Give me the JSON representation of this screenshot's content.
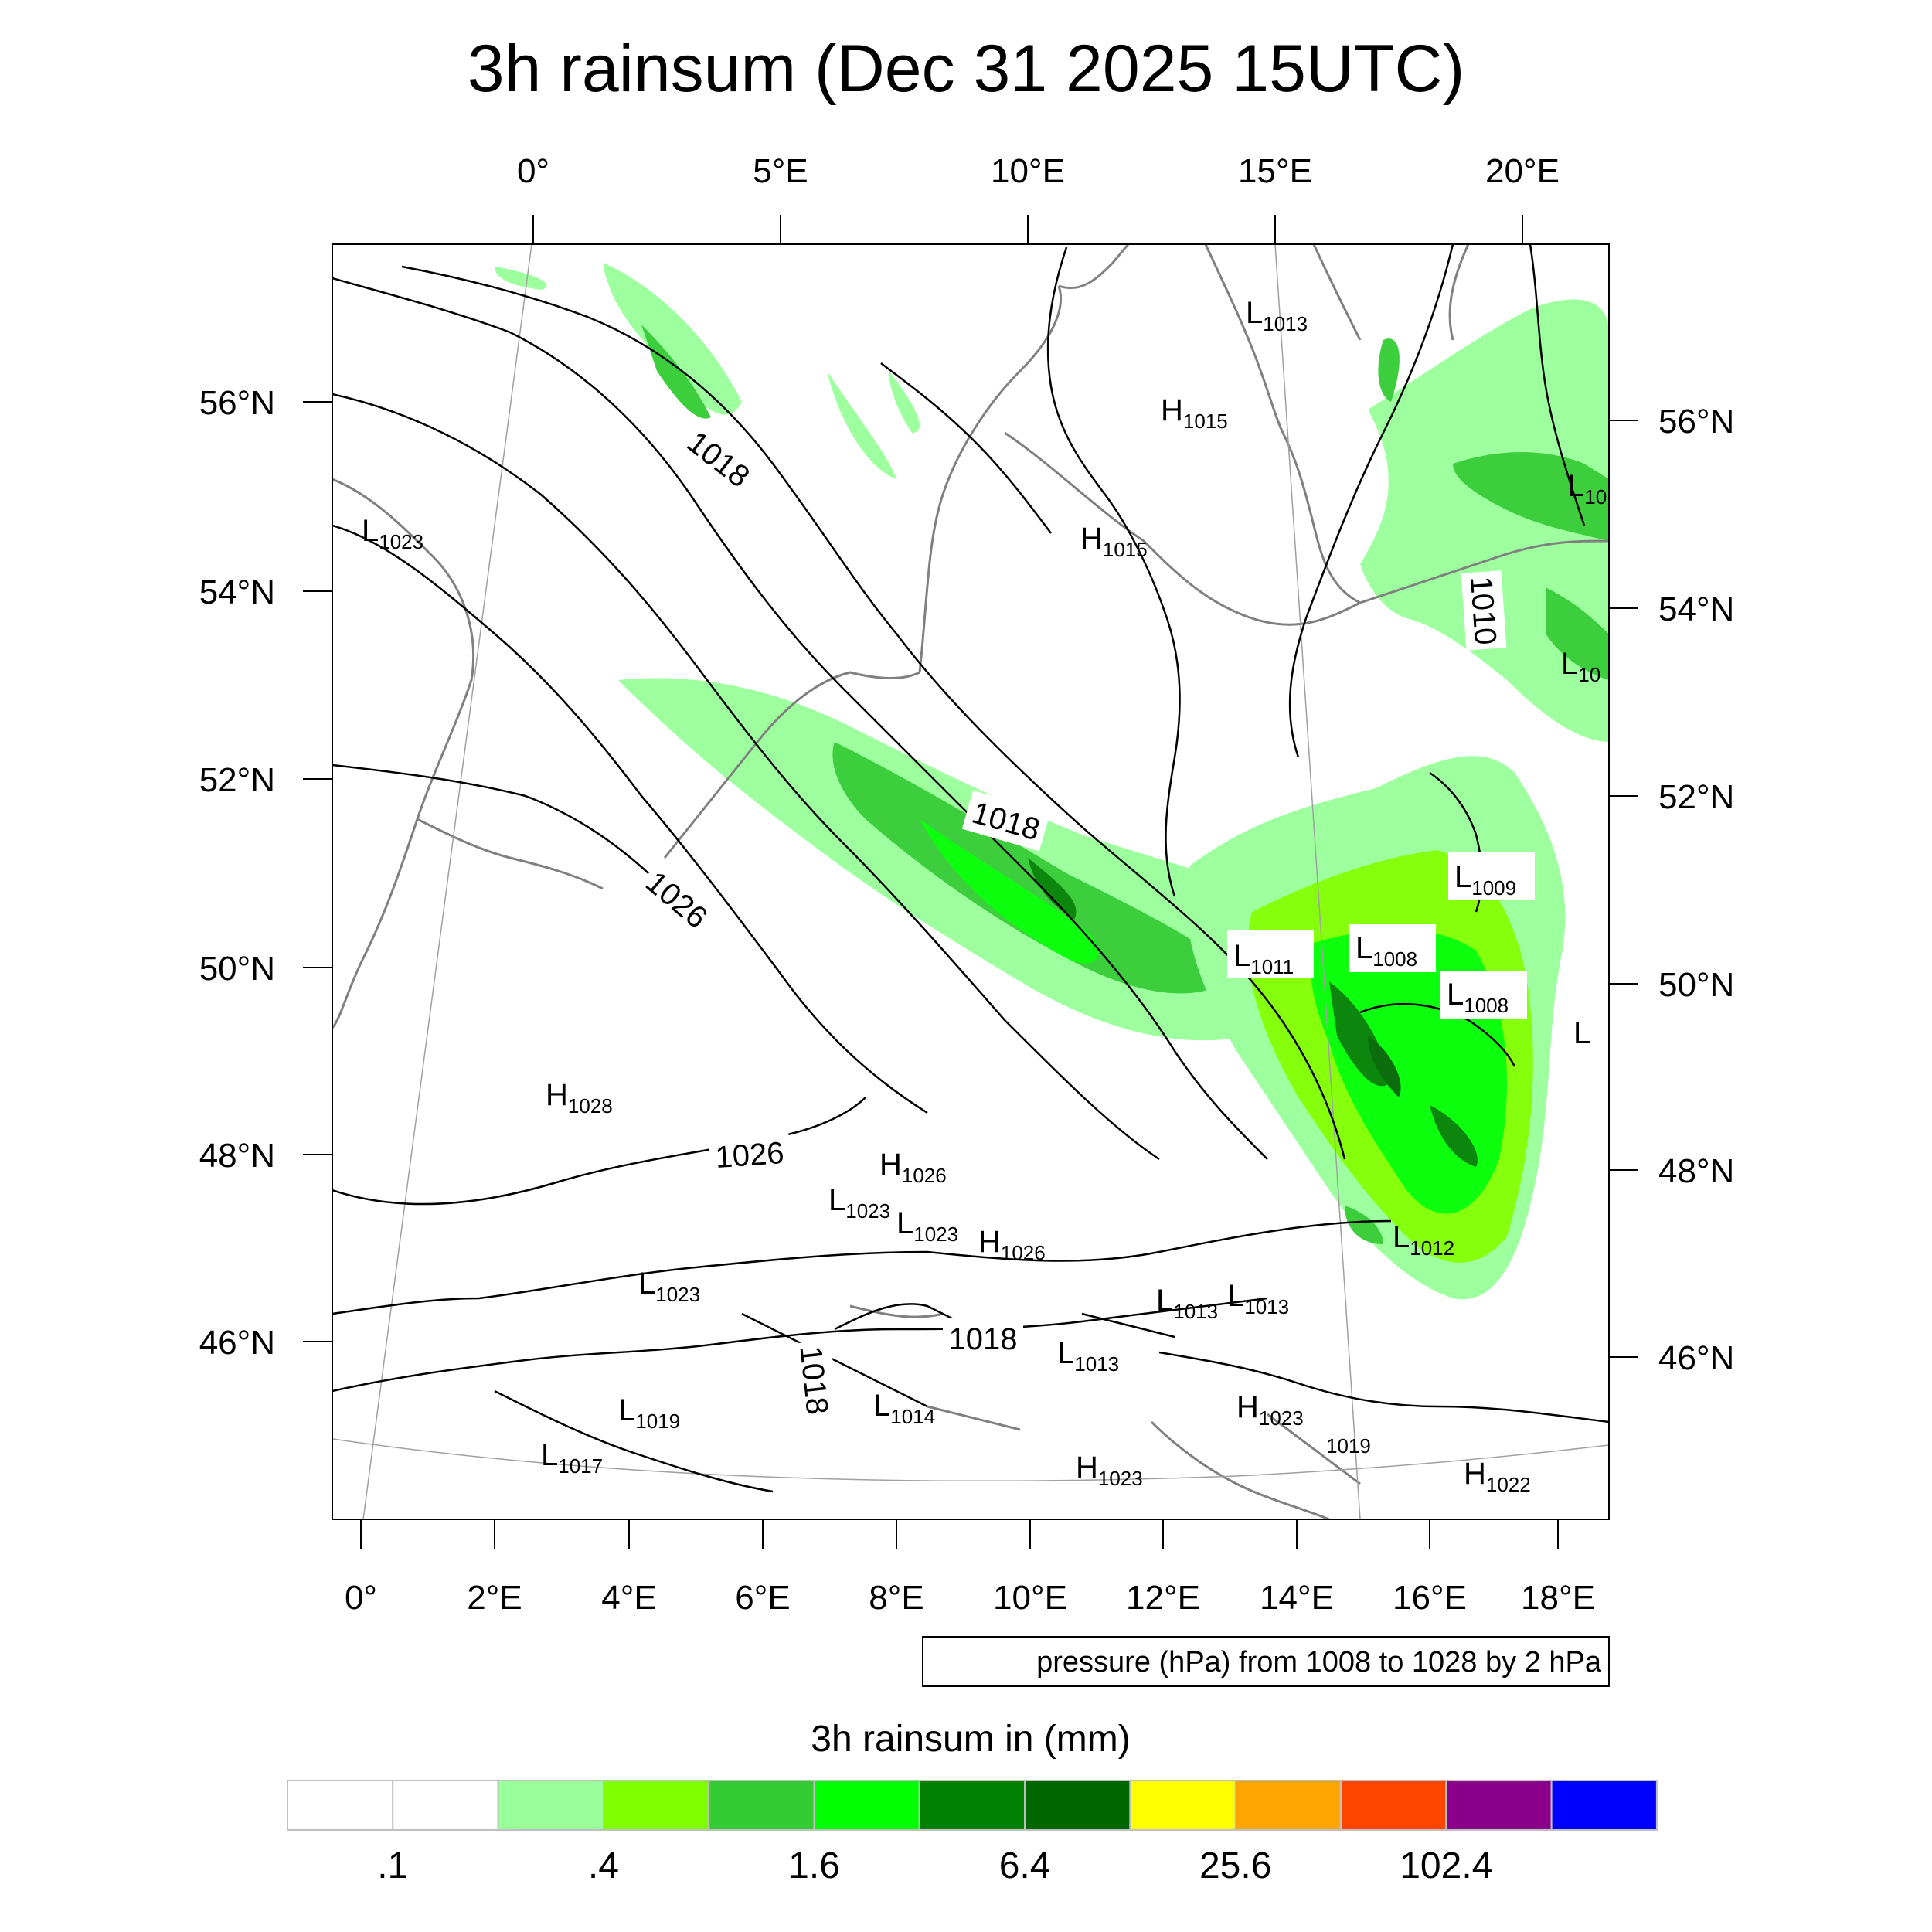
{
  "title": "3h rainsum (Dec 31 2025 15UTC)",
  "top_lon_labels": [
    "0°",
    "5°E",
    "10°E",
    "15°E",
    "20°E"
  ],
  "bottom_lon_labels": [
    "0°",
    "2°E",
    "4°E",
    "6°E",
    "8°E",
    "10°E",
    "12°E",
    "14°E",
    "16°E",
    "18°E"
  ],
  "left_lat_labels": [
    "56°N",
    "54°N",
    "52°N",
    "50°N",
    "48°N",
    "46°N"
  ],
  "right_lat_labels": [
    "56°N",
    "54°N",
    "52°N",
    "50°N",
    "48°N",
    "46°N"
  ],
  "pressure_centers": [
    {
      "t": "L",
      "v": "1013"
    },
    {
      "t": "H",
      "v": "1015"
    },
    {
      "t": "H",
      "v": "1015"
    },
    {
      "t": "L",
      "v": "1023"
    },
    {
      "t": "L",
      "v": "10"
    },
    {
      "t": "L",
      "v": "10"
    },
    {
      "t": "L",
      "v": "1009"
    },
    {
      "t": "L",
      "v": "1011"
    },
    {
      "t": "L",
      "v": "1008"
    },
    {
      "t": "L",
      "v": "1008"
    },
    {
      "t": "L",
      "v": ""
    },
    {
      "t": "H",
      "v": "1028"
    },
    {
      "t": "H",
      "v": "1026"
    },
    {
      "t": "L",
      "v": "1023"
    },
    {
      "t": "L",
      "v": "1023"
    },
    {
      "t": "H",
      "v": "1026"
    },
    {
      "t": "L",
      "v": "1012"
    },
    {
      "t": "L",
      "v": "1023"
    },
    {
      "t": "L",
      "v": "1013"
    },
    {
      "t": "L",
      "v": "1013"
    },
    {
      "t": "L",
      "v": "1013"
    },
    {
      "t": "L",
      "v": "1019"
    },
    {
      "t": "L",
      "v": "1014"
    },
    {
      "t": "L",
      "v": "1017"
    },
    {
      "t": "H",
      "v": "1023"
    },
    {
      "t": "H",
      "v": "1023"
    },
    {
      "t": "",
      "v": "1019"
    },
    {
      "t": "H",
      "v": "1022"
    }
  ],
  "contour_labels": [
    "1018",
    "1018",
    "1026",
    "1026",
    "1010",
    "1018",
    "1018"
  ],
  "info_box": "pressure (hPa) from 1008 to 1028 by 2 hPa",
  "colorbar": {
    "title": "3h rainsum in (mm)",
    "colors": [
      "#ffffff",
      "#ffffff",
      "#99ff99",
      "#80ff00",
      "#33cc33",
      "#00ff00",
      "#008000",
      "#006600",
      "#ffff00",
      "#ffa500",
      "#ff4500",
      "#8b008b",
      "#0000ff"
    ],
    "labels": [
      ".1",
      ".4",
      "1.6",
      "6.4",
      "25.6",
      "102.4"
    ]
  }
}
